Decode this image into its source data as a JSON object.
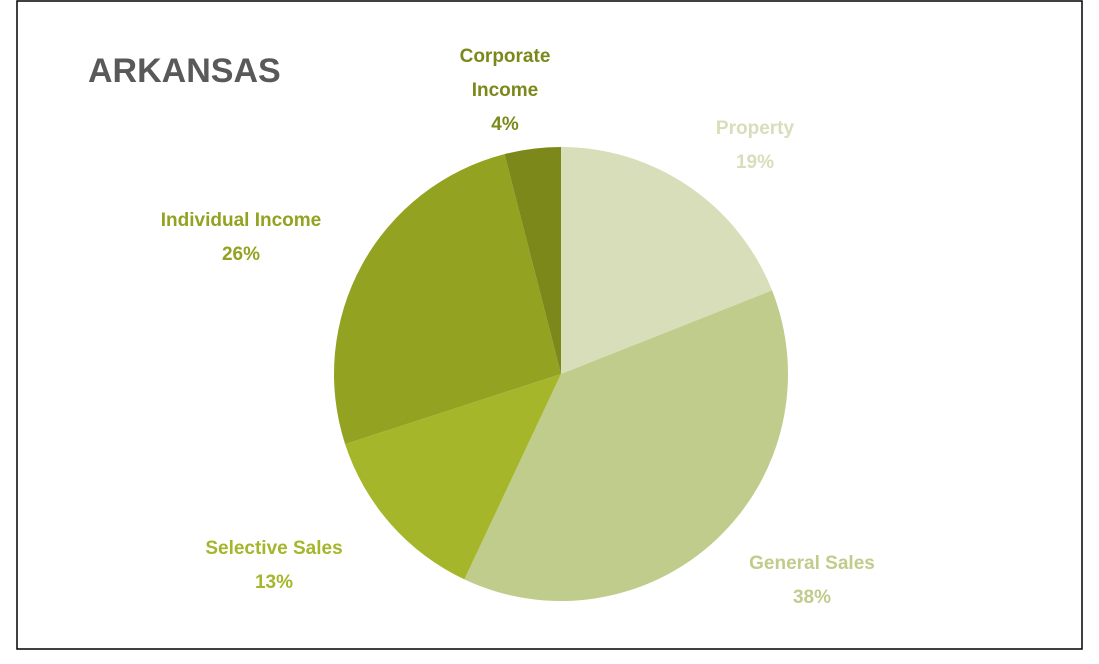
{
  "chart_data": {
    "type": "pie",
    "title": "ARKANSAS",
    "categories": [
      "Property",
      "General Sales",
      "Selective Sales",
      "Individual Income",
      "Corporate Income"
    ],
    "values": [
      19,
      38,
      13,
      26,
      4
    ],
    "value_labels": [
      "19%",
      "38%",
      "13%",
      "26%",
      "4%"
    ],
    "colors": [
      "#d7deb9",
      "#c0cc8b",
      "#a5b62b",
      "#94a221",
      "#7c891a"
    ]
  }
}
